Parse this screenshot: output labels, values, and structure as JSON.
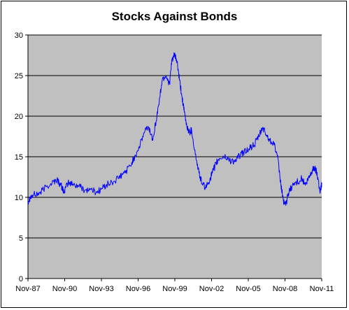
{
  "chart_data": {
    "type": "line",
    "title": "Stocks Against Bonds",
    "xlabel": "",
    "ylabel": "",
    "ylim": [
      0,
      30
    ],
    "y_ticks": [
      0,
      5,
      10,
      15,
      20,
      25,
      30
    ],
    "x_tick_labels": [
      "Nov-87",
      "Nov-90",
      "Nov-93",
      "Nov-96",
      "Nov-99",
      "Nov-02",
      "Nov-05",
      "Nov-08",
      "Nov-11"
    ],
    "xlim": [
      1987.83,
      2011.83
    ],
    "grid": "horizontal",
    "plot_background": "#c0c0c0",
    "line_color": "#0000ff",
    "series": [
      {
        "x": [
          1987.83,
          1988.0,
          1988.3,
          1988.8,
          1989.3,
          1989.8,
          1990.2,
          1990.5,
          1990.8,
          1991.1,
          1991.5,
          1992.0,
          1992.5,
          1993.0,
          1993.4,
          1993.8,
          1994.2,
          1994.7,
          1995.2,
          1995.7,
          1996.2,
          1996.6,
          1997.0,
          1997.4,
          1997.7,
          1998.0,
          1998.3,
          1998.6,
          1998.8,
          1999.1,
          1999.4,
          1999.6,
          1999.8,
          2000.0,
          2000.2,
          2000.4,
          2000.6,
          2000.8,
          2001.0,
          2001.2,
          2001.5,
          2001.8,
          2002.1,
          2002.4,
          2002.7,
          2002.9,
          2003.2,
          2003.5,
          2003.9,
          2004.3,
          2004.7,
          2005.1,
          2005.5,
          2005.9,
          2006.3,
          2006.7,
          2007.0,
          2007.3,
          2007.6,
          2007.9,
          2008.2,
          2008.5,
          2008.7,
          2008.9,
          2009.1,
          2009.4,
          2009.8,
          2010.2,
          2010.5,
          2010.8,
          2011.0,
          2011.2,
          2011.4,
          2011.55,
          2011.7,
          2011.83
        ],
        "y": [
          9.5,
          10.0,
          10.3,
          10.5,
          11.3,
          11.8,
          12.2,
          11.5,
          10.7,
          11.8,
          11.6,
          11.4,
          10.9,
          11.0,
          10.6,
          11.0,
          11.5,
          11.8,
          12.3,
          13.0,
          13.9,
          15.2,
          16.5,
          18.3,
          18.6,
          17.2,
          19.4,
          22.3,
          24.5,
          25.0,
          24.0,
          27.0,
          27.5,
          26.8,
          24.5,
          22.5,
          20.5,
          18.8,
          18.0,
          18.3,
          15.3,
          13.0,
          11.5,
          11.2,
          12.3,
          13.0,
          14.2,
          14.8,
          15.0,
          14.6,
          14.4,
          15.1,
          15.6,
          16.0,
          16.4,
          17.5,
          18.6,
          17.7,
          17.0,
          16.8,
          15.1,
          11.5,
          9.6,
          9.0,
          10.5,
          11.4,
          11.9,
          12.3,
          11.5,
          12.4,
          13.1,
          13.7,
          13.2,
          12.2,
          10.5,
          11.8
        ]
      }
    ]
  }
}
